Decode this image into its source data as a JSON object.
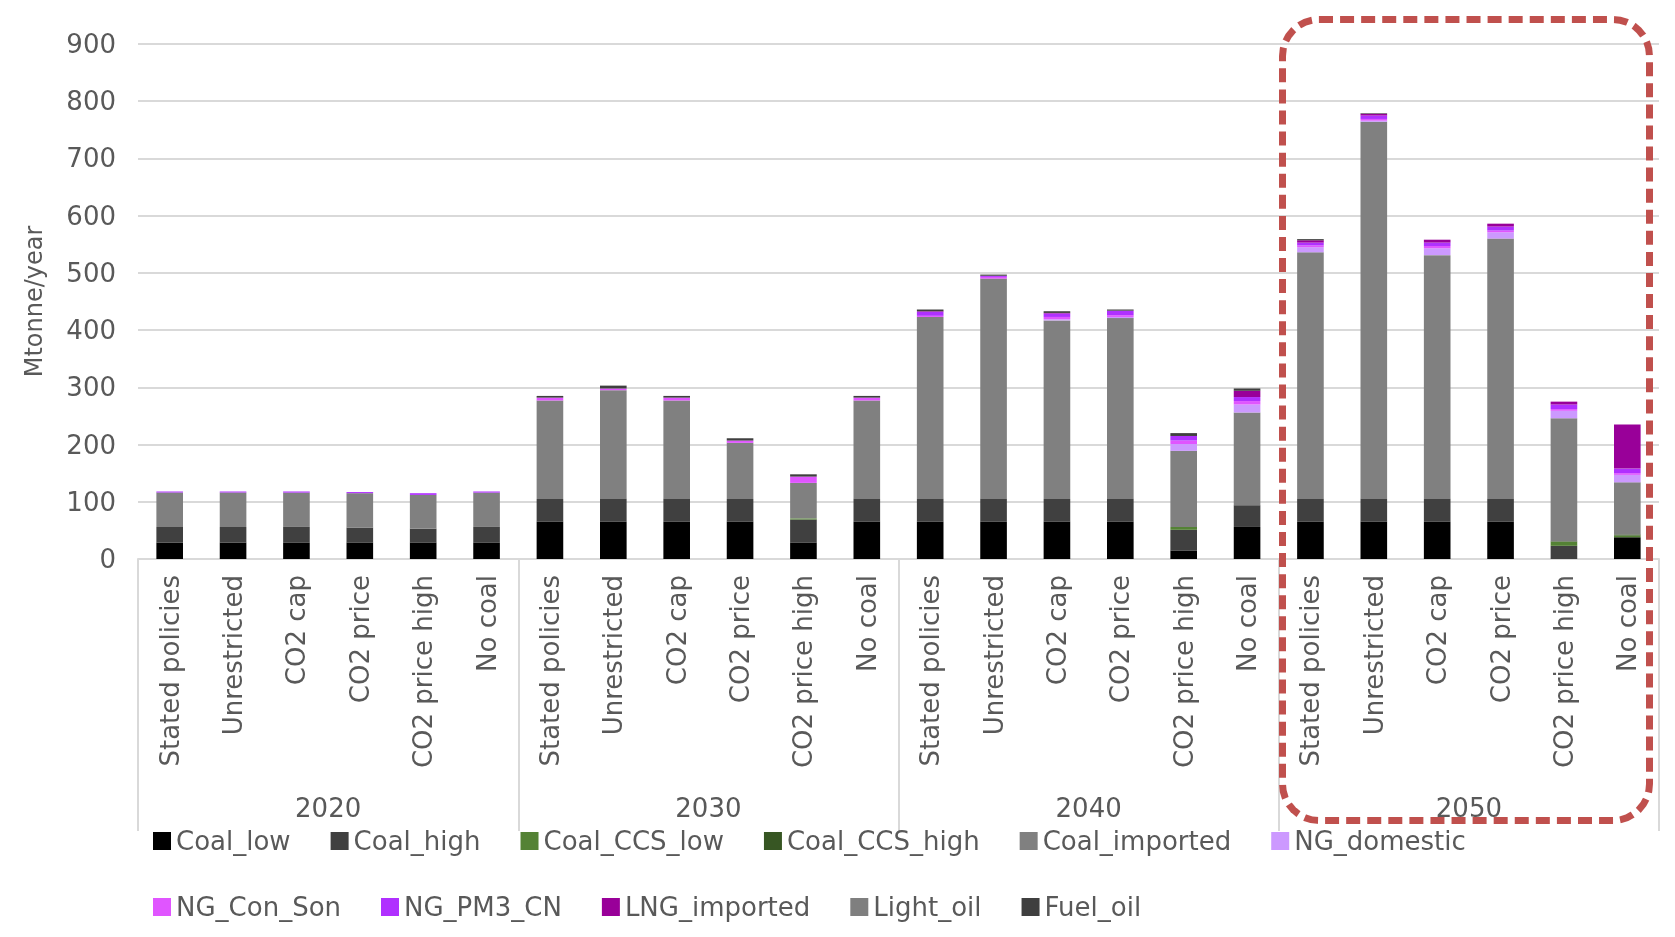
{
  "chart_data": {
    "type": "bar",
    "stacked": true,
    "ylabel": "Mtonne/year",
    "categories": [
      "Stated policies",
      "Unrestricted",
      "CO2 cap",
      "CO2 price",
      "CO2 price high",
      "No coal",
      "Stated policies",
      "Unrestricted",
      "CO2 cap",
      "CO2 price",
      "CO2 price high",
      "No coal",
      "Stated policies",
      "Unrestricted",
      "CO2 cap",
      "CO2 price",
      "CO2 price high",
      "No coal",
      "Stated policies",
      "Unrestricted",
      "CO2 cap",
      "CO2 price",
      "CO2 price high",
      "No coal"
    ],
    "annotations": [
      "2020",
      "2030",
      "2040",
      "2050"
    ],
    "series": [
      {
        "name": "Coal_low",
        "color": "#000000",
        "values": [
          29,
          29,
          29,
          29,
          29,
          29,
          65,
          65,
          65,
          65,
          29,
          65,
          65,
          65,
          65,
          65,
          15,
          56,
          65,
          65,
          65,
          65,
          0,
          38
        ]
      },
      {
        "name": "Coal_high",
        "color": "#404040",
        "values": [
          27,
          27,
          27,
          26,
          24,
          27,
          40,
          40,
          40,
          40,
          40,
          40,
          40,
          40,
          40,
          40,
          36,
          38,
          40,
          40,
          40,
          40,
          23,
          0
        ]
      },
      {
        "name": "Coal_CCS_low",
        "color": "#548235",
        "values": [
          0,
          0,
          0,
          0,
          0,
          0,
          0,
          0,
          0,
          0,
          2,
          0,
          0,
          0,
          0,
          0,
          5,
          0,
          0,
          0,
          0,
          0,
          7,
          3
        ]
      },
      {
        "name": "Coal_CCS_high",
        "color": "#375623",
        "values": [
          0,
          0,
          0,
          0,
          0,
          0,
          0,
          0,
          0,
          0,
          0,
          0,
          0,
          0,
          0,
          0,
          0,
          0,
          0,
          0,
          0,
          0,
          1,
          2
        ]
      },
      {
        "name": "Coal_imported",
        "color": "#808080",
        "values": [
          60,
          60,
          60,
          60,
          59,
          60,
          172,
          190,
          172,
          98,
          62,
          172,
          318,
          385,
          312,
          316,
          133,
          162,
          431,
          659,
          426,
          455,
          215,
          91
        ]
      },
      {
        "name": "NG_domestic",
        "color": "#cc99ff",
        "values": [
          0,
          0,
          0,
          0,
          0,
          0,
          0,
          0,
          0,
          0,
          0,
          0,
          0,
          0,
          2,
          2,
          12,
          14,
          9,
          2,
          12,
          11,
          13,
          13
        ]
      },
      {
        "name": "NG_Con_Son",
        "color": "#e055ff",
        "values": [
          0,
          0,
          0,
          0,
          0,
          0,
          5,
          3,
          5,
          4,
          11,
          5,
          2,
          3,
          4,
          3,
          6,
          6,
          3,
          3,
          4,
          3,
          3,
          3
        ]
      },
      {
        "name": "NG_PM3_CN",
        "color": "#b030ff",
        "values": [
          2,
          2,
          2,
          2,
          3,
          2,
          0,
          0,
          0,
          0,
          0,
          0,
          7,
          2,
          6,
          8,
          8,
          7,
          5,
          6,
          6,
          7,
          8,
          8
        ]
      },
      {
        "name": "LNG_imported",
        "color": "#990099",
        "values": [
          0,
          0,
          0,
          0,
          0,
          0,
          0,
          0,
          0,
          0,
          0,
          0,
          1,
          0,
          1,
          0,
          0,
          11,
          4,
          3,
          5,
          5,
          5,
          77
        ]
      },
      {
        "name": "Light_oil",
        "color": "#7f7f7f",
        "values": [
          0,
          0,
          0,
          0,
          0,
          0,
          0,
          0,
          0,
          0,
          0,
          0,
          0,
          0,
          0,
          0,
          0,
          0,
          0,
          0,
          0,
          0,
          0,
          0
        ]
      },
      {
        "name": "Fuel_oil",
        "color": "#3f3f3f",
        "values": [
          0,
          0,
          0,
          0,
          0,
          0,
          3,
          5,
          3,
          4,
          4,
          3,
          3,
          2,
          3,
          2,
          5,
          4,
          2,
          1,
          0,
          0,
          0,
          0
        ]
      }
    ],
    "ylim": [
      0,
      900
    ],
    "yticks": [
      0,
      100,
      200,
      300,
      400,
      500,
      600,
      700,
      800,
      900
    ],
    "grid": "y",
    "legend": "bottom"
  }
}
